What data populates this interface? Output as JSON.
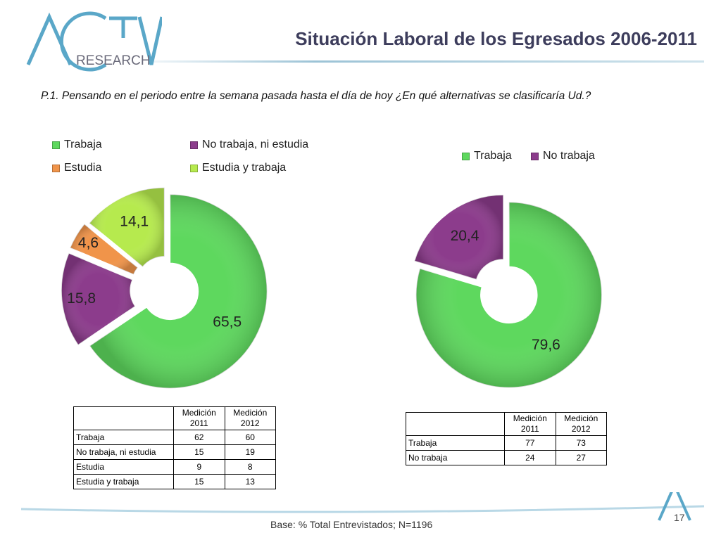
{
  "header": {
    "logo_main": "ACTIVA",
    "logo_sub": "RESEARCH",
    "title": "Situación Laboral de los Egresados 2006-2011"
  },
  "question": "P.1.  Pensando en el periodo entre la semana pasada hasta el día de hoy ¿En qué alternativas se clasificaría Ud.?",
  "colors": {
    "trabaja": "#5ed85e",
    "no_trabaja_ni_estudia": "#8c3c8c",
    "estudia": "#f0944a",
    "estudia_y_trabaja": "#b6ea4e",
    "no_trabaja": "#8c3c8c"
  },
  "chart_data": [
    {
      "type": "pie",
      "donut": true,
      "categories": [
        "Trabaja",
        "No trabaja, ni estudia",
        "Estudia",
        "Estudia y trabaja"
      ],
      "values": [
        65.5,
        15.8,
        4.6,
        14.1
      ],
      "value_labels": [
        "65,5",
        "15,8",
        "4,6",
        "14,1"
      ],
      "exploded": true,
      "legend": "top"
    },
    {
      "type": "pie",
      "donut": true,
      "categories": [
        "Trabaja",
        "No trabaja"
      ],
      "values": [
        79.6,
        20.4
      ],
      "value_labels": [
        "79,6",
        "20,4"
      ],
      "exploded": true,
      "legend": "top"
    }
  ],
  "tables": [
    {
      "headers": [
        "",
        "Medición 2011",
        "Medición 2012"
      ],
      "rows": [
        [
          "Trabaja",
          "62",
          "60"
        ],
        [
          "No trabaja, ni estudia",
          "15",
          "19"
        ],
        [
          "Estudia",
          "9",
          "8"
        ],
        [
          "Estudia y trabaja",
          "15",
          "13"
        ]
      ]
    },
    {
      "headers": [
        "",
        "Medición 2011",
        "Medición 2012"
      ],
      "rows": [
        [
          "Trabaja",
          "77",
          "73"
        ],
        [
          "No trabaja",
          "24",
          "27"
        ]
      ]
    }
  ],
  "footer": {
    "base": "Base: % Total Entrevistados; N=1196",
    "page_number": "17"
  }
}
